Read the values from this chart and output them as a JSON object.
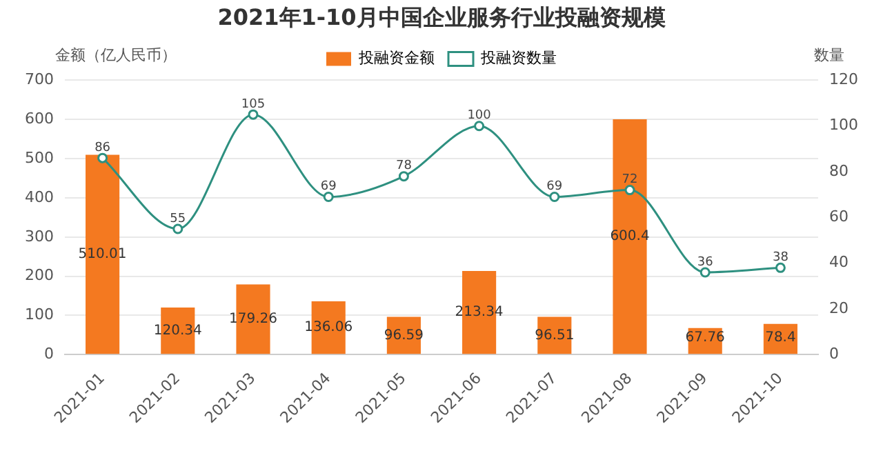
{
  "chart_data": {
    "type": "bar",
    "title": "2021年1-10月中国企业服务行业投融资规模",
    "ylabel": "金额（亿人民币）",
    "y2label": "数量",
    "categories": [
      "2021-01",
      "2021-02",
      "2021-03",
      "2021-04",
      "2021-05",
      "2021-06",
      "2021-07",
      "2021-08",
      "2021-09",
      "2021-10"
    ],
    "series": [
      {
        "name": "投融资金额",
        "color": "#f47920",
        "values": [
          510.01,
          120.34,
          179.26,
          136.06,
          96.59,
          213.34,
          96.51,
          600.4,
          67.76,
          78.4
        ]
      },
      {
        "name": "投融资数量",
        "type": "line",
        "axis": "y2",
        "color": "#2e9080",
        "values": [
          86,
          55,
          105,
          69,
          78,
          100,
          69,
          72,
          36,
          38
        ]
      }
    ],
    "ylim": [
      0,
      700
    ],
    "yticks": [
      0,
      100,
      200,
      300,
      400,
      500,
      600,
      700
    ],
    "y2lim": [
      0,
      120
    ],
    "y2ticks": [
      0,
      20,
      40,
      60,
      80,
      100,
      120
    ],
    "data_labels": true,
    "grid": "y",
    "legend": "top",
    "marker": "circle"
  }
}
